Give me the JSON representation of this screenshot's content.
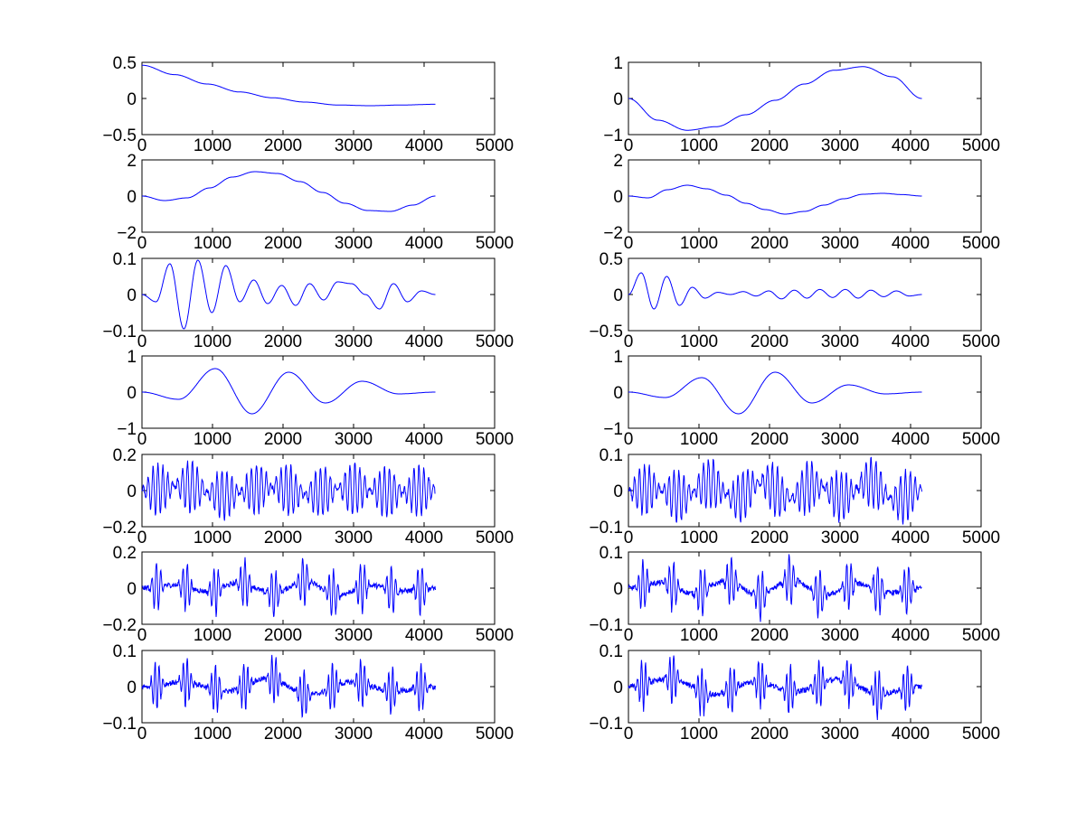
{
  "chart_data": [
    {
      "type": "line",
      "position": "row 1, left",
      "xlim": [
        0,
        5000
      ],
      "ylim": [
        -0.5,
        0.5
      ],
      "xticks": [
        "0",
        "1000",
        "2000",
        "3000",
        "4000",
        "5000"
      ],
      "yticks": [
        "0.5",
        "0",
        "−0.5"
      ],
      "x_end": 4160,
      "series": [
        {
          "values": [
            0.46,
            0.33,
            0.2,
            0.09,
            0.01,
            -0.05,
            -0.09,
            -0.1,
            -0.09,
            -0.08
          ]
        }
      ]
    },
    {
      "type": "line",
      "position": "row 1, right",
      "xlim": [
        0,
        5000
      ],
      "ylim": [
        -1,
        1
      ],
      "xticks": [
        "0",
        "1000",
        "2000",
        "3000",
        "4000",
        "5000"
      ],
      "yticks": [
        "1",
        "0",
        "−1"
      ],
      "x_end": 4160,
      "series": [
        {
          "values": [
            0.0,
            -0.6,
            -0.88,
            -0.78,
            -0.45,
            -0.05,
            0.4,
            0.78,
            0.88,
            0.6,
            0.0
          ]
        }
      ]
    },
    {
      "type": "line",
      "position": "row 2, left",
      "xlim": [
        0,
        5000
      ],
      "ylim": [
        -2,
        2
      ],
      "xticks": [
        "0",
        "1000",
        "2000",
        "3000",
        "4000",
        "5000"
      ],
      "yticks": [
        "2",
        "0",
        "−2"
      ],
      "x_end": 4160,
      "series": [
        {
          "values": [
            0.0,
            -0.25,
            -0.1,
            0.45,
            1.05,
            1.35,
            1.25,
            0.8,
            0.2,
            -0.4,
            -0.8,
            -0.85,
            -0.5,
            0.0
          ]
        }
      ]
    },
    {
      "type": "line",
      "position": "row 2, right",
      "xlim": [
        0,
        5000
      ],
      "ylim": [
        -2,
        2
      ],
      "xticks": [
        "0",
        "1000",
        "2000",
        "3000",
        "4000",
        "5000"
      ],
      "yticks": [
        "2",
        "0",
        "−2"
      ],
      "x_end": 4160,
      "series": [
        {
          "values": [
            0.0,
            -0.1,
            0.35,
            0.6,
            0.4,
            0.05,
            -0.4,
            -0.75,
            -1.0,
            -0.85,
            -0.5,
            -0.15,
            0.1,
            0.15,
            0.08,
            0.0
          ]
        }
      ]
    },
    {
      "type": "line",
      "position": "row 3, left",
      "xlim": [
        0,
        5000
      ],
      "ylim": [
        -0.1,
        0.1
      ],
      "xticks": [
        "0",
        "1000",
        "2000",
        "3000",
        "4000",
        "5000"
      ],
      "yticks": [
        "0.1",
        "0",
        "−0.1"
      ],
      "x_end": 4160,
      "series": [
        {
          "values": [
            0.0,
            -0.02,
            0.085,
            -0.095,
            0.095,
            -0.05,
            0.08,
            -0.02,
            0.04,
            -0.025,
            0.025,
            -0.03,
            0.03,
            -0.015,
            0.035,
            0.03,
            0.0,
            -0.04,
            0.03,
            -0.02,
            0.01,
            0.0
          ]
        }
      ]
    },
    {
      "type": "line",
      "position": "row 3, right",
      "xlim": [
        0,
        5000
      ],
      "ylim": [
        -0.5,
        0.5
      ],
      "xticks": [
        "0",
        "1000",
        "2000",
        "3000",
        "4000",
        "5000"
      ],
      "yticks": [
        "0.5",
        "0",
        "−0.5"
      ],
      "x_end": 4160,
      "series": [
        {
          "values": [
            0.0,
            0.3,
            -0.2,
            0.25,
            -0.15,
            0.1,
            -0.05,
            0.03,
            0.0,
            0.04,
            -0.02,
            0.05,
            -0.06,
            0.06,
            -0.05,
            0.07,
            -0.04,
            0.07,
            -0.05,
            0.06,
            -0.03,
            0.05,
            -0.02,
            0.0
          ]
        }
      ]
    },
    {
      "type": "line",
      "position": "row 4, left",
      "xlim": [
        0,
        5000
      ],
      "ylim": [
        -1,
        1
      ],
      "xticks": [
        "0",
        "1000",
        "2000",
        "3000",
        "4000",
        "5000"
      ],
      "yticks": [
        "1",
        "0",
        "−1"
      ],
      "x_end": 4160,
      "series": [
        {
          "values": [
            0.0,
            -0.2,
            0.65,
            -0.6,
            0.55,
            -0.3,
            0.3,
            -0.05,
            0.0
          ]
        }
      ]
    },
    {
      "type": "line",
      "position": "row 4, right",
      "xlim": [
        0,
        5000
      ],
      "ylim": [
        -1,
        1
      ],
      "xticks": [
        "0",
        "1000",
        "2000",
        "3000",
        "4000",
        "5000"
      ],
      "yticks": [
        "1",
        "0",
        "−1"
      ],
      "x_end": 4160,
      "series": [
        {
          "values": [
            0.0,
            -0.15,
            0.4,
            -0.6,
            0.55,
            -0.3,
            0.2,
            -0.05,
            0.0
          ]
        }
      ]
    },
    {
      "type": "line",
      "position": "row 5, left",
      "xlim": [
        0,
        5000
      ],
      "ylim": [
        -0.2,
        0.2
      ],
      "xticks": [
        "0",
        "1000",
        "2000",
        "3000",
        "4000",
        "5000"
      ],
      "yticks": [
        "0.2",
        "0",
        "−0.2"
      ],
      "x_end": 4160,
      "series": [
        {
          "values": [
            0.0,
            0.1,
            -0.1,
            0.08,
            -0.06,
            0.05,
            -0.05,
            0.0
          ]
        }
      ]
    },
    {
      "type": "line",
      "position": "row 5, right",
      "xlim": [
        0,
        5000
      ],
      "ylim": [
        -0.1,
        0.1
      ],
      "xticks": [
        "0",
        "1000",
        "2000",
        "3000",
        "4000",
        "5000"
      ],
      "yticks": [
        "0.1",
        "0",
        "−0.1"
      ],
      "x_end": 4160,
      "series": [
        {
          "values": [
            0.0,
            0.02,
            -0.07,
            0.08,
            -0.09,
            0.09,
            -0.08,
            0.06,
            -0.07,
            0.1,
            -0.1,
            0.0
          ]
        }
      ]
    },
    {
      "type": "line",
      "position": "row 6, left",
      "xlim": [
        0,
        5000
      ],
      "ylim": [
        -0.2,
        0.2
      ],
      "xticks": [
        "0",
        "1000",
        "2000",
        "3000",
        "4000",
        "5000"
      ],
      "yticks": [
        "0.2",
        "0",
        "−0.2"
      ],
      "x_end": 4160,
      "series": [
        {
          "values": [
            0.0,
            0.07,
            -0.07,
            0.12,
            -0.12,
            0.15,
            -0.15,
            0.06,
            -0.06,
            0.0
          ]
        }
      ]
    },
    {
      "type": "line",
      "position": "row 6, right",
      "xlim": [
        0,
        5000
      ],
      "ylim": [
        -0.1,
        0.1
      ],
      "xticks": [
        "0",
        "1000",
        "2000",
        "3000",
        "4000",
        "5000"
      ],
      "yticks": [
        "0.1",
        "0",
        "−0.1"
      ],
      "x_end": 4160,
      "series": [
        {
          "values": [
            0.0,
            0.06,
            -0.06,
            0.08,
            -0.08,
            0.09,
            -0.08,
            0.05,
            -0.05,
            0.0
          ]
        }
      ]
    },
    {
      "type": "line",
      "position": "row 7, left",
      "xlim": [
        0,
        5000
      ],
      "ylim": [
        -0.1,
        0.1
      ],
      "xticks": [
        "0",
        "1000",
        "2000",
        "3000",
        "4000",
        "5000"
      ],
      "yticks": [
        "0.1",
        "0",
        "−0.1"
      ],
      "x_end": 4160,
      "series": [
        {
          "values": [
            0.0,
            0.05,
            -0.05,
            0.09,
            -0.09,
            0.05,
            -0.05,
            0.0
          ]
        }
      ]
    },
    {
      "type": "line",
      "position": "row 7, right",
      "xlim": [
        0,
        5000
      ],
      "ylim": [
        -0.1,
        0.1
      ],
      "xticks": [
        "0",
        "1000",
        "2000",
        "3000",
        "4000",
        "5000"
      ],
      "yticks": [
        "0.1",
        "0",
        "−0.1"
      ],
      "x_end": 4160,
      "series": [
        {
          "values": [
            0.0,
            0.09,
            -0.09,
            0.05,
            -0.05,
            0.08,
            -0.08,
            0.0
          ]
        }
      ]
    }
  ],
  "style": {
    "line_color": "#0000ff",
    "axis_color": "#000000",
    "background": "#ffffff",
    "grid": false,
    "legend": "none"
  }
}
